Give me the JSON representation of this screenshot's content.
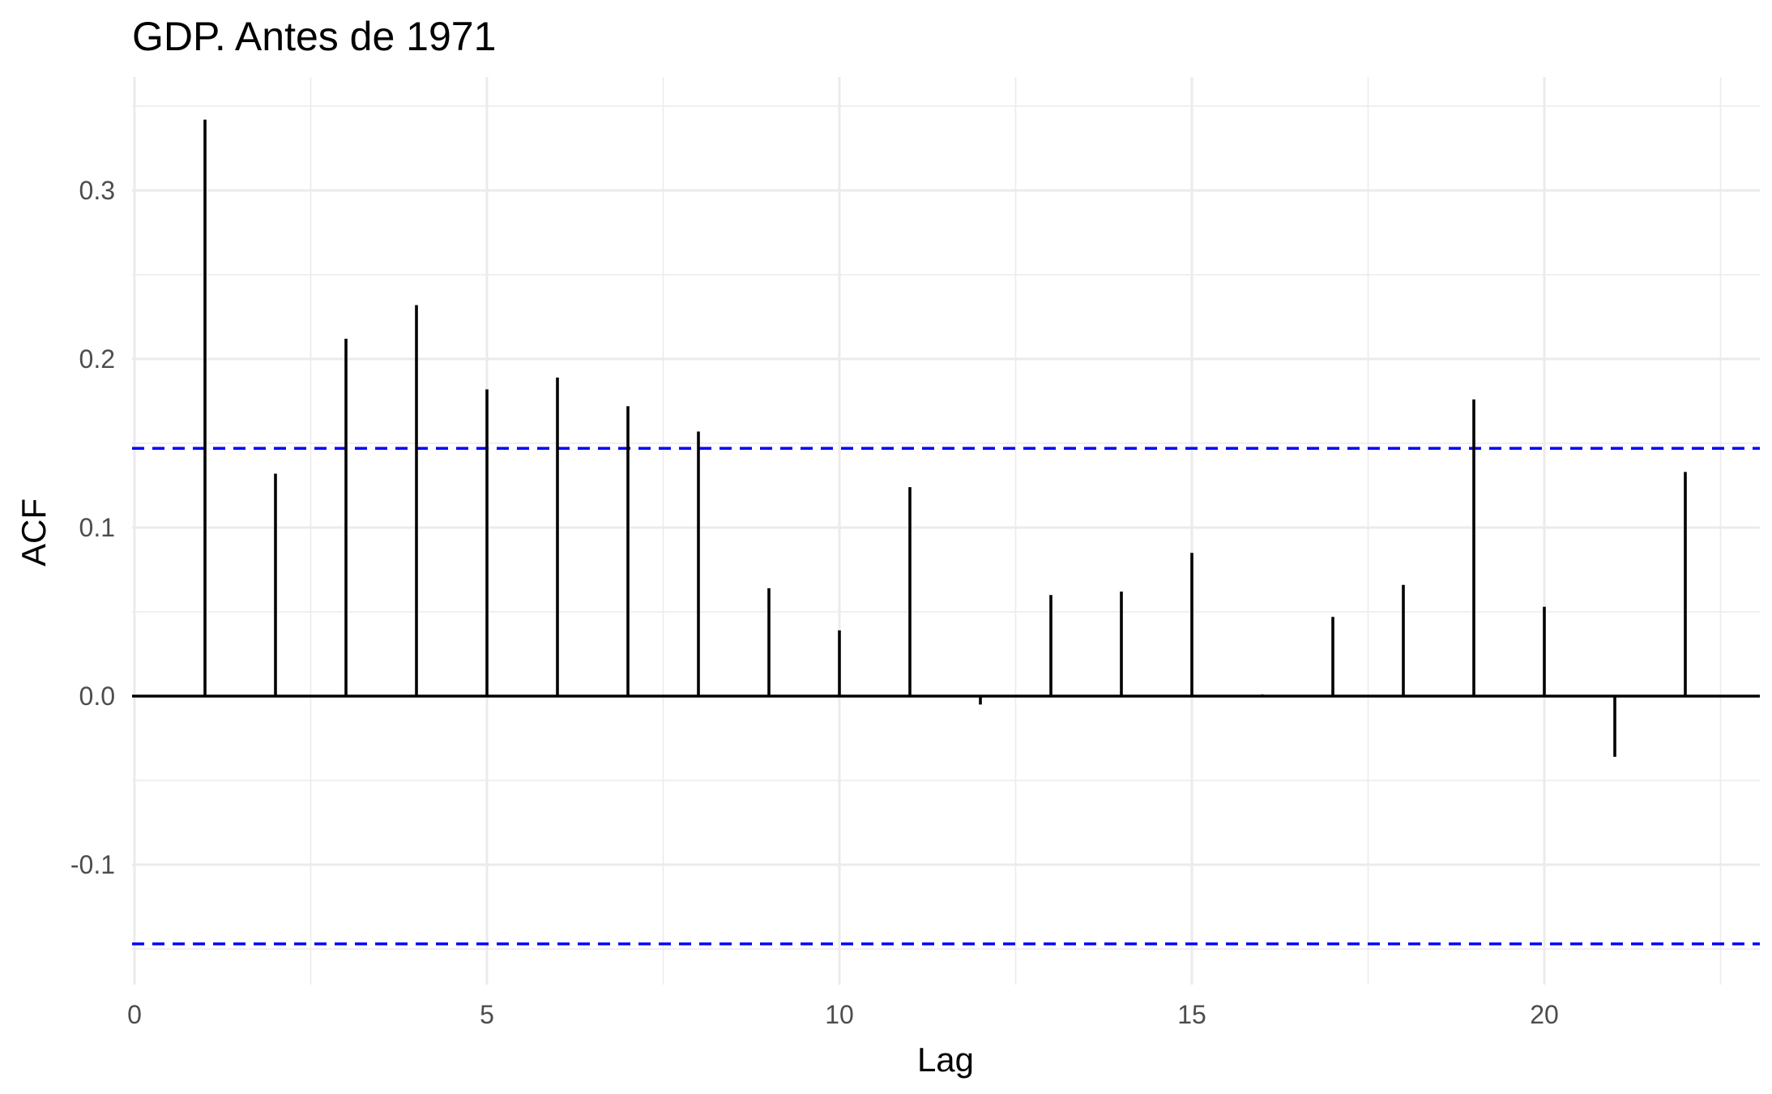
{
  "chart_data": {
    "type": "bar",
    "title": "GDP. Antes de 1971",
    "xlabel": "Lag",
    "ylabel": "ACF",
    "x": [
      1,
      2,
      3,
      4,
      5,
      6,
      7,
      8,
      9,
      10,
      11,
      12,
      13,
      14,
      15,
      16,
      17,
      18,
      19,
      20,
      21,
      22
    ],
    "values": [
      0.342,
      0.132,
      0.212,
      0.232,
      0.182,
      0.189,
      0.172,
      0.157,
      0.064,
      0.039,
      0.124,
      -0.005,
      0.06,
      0.062,
      0.085,
      0.001,
      0.047,
      0.066,
      0.176,
      0.053,
      -0.036,
      0.133
    ],
    "confidence_limits": [
      0.147,
      -0.147
    ],
    "xlim": [
      0,
      23
    ],
    "ylim": [
      -0.165,
      0.365
    ],
    "x_ticks": [
      0,
      5,
      10,
      15,
      20
    ],
    "x_tick_labels": [
      "0",
      "5",
      "10",
      "15",
      "20"
    ],
    "y_ticks": [
      -0.1,
      0.0,
      0.1,
      0.2,
      0.3
    ],
    "y_tick_labels": [
      "-0.1",
      "0.0",
      "0.1",
      "0.2",
      "0.3"
    ],
    "grid": true,
    "legend": "none",
    "colors": {
      "bars": "#000000",
      "confidence_limits": "#0000ff",
      "grid": "#ebebeb",
      "background": "#ffffff"
    }
  }
}
